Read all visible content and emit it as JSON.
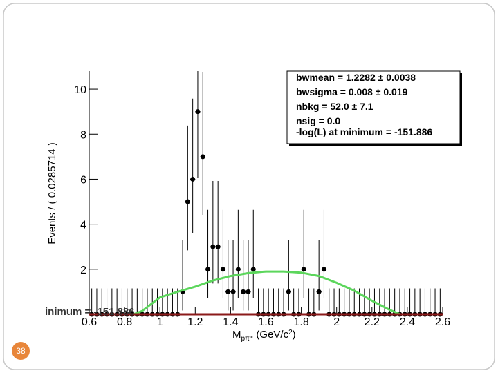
{
  "chart_data": {
    "type": "errorbar",
    "ylabel": "Events / ( 0.0285714 )",
    "xlabel_parts": [
      "M",
      "pπ⁺",
      " (GeV/c",
      "2",
      ")"
    ],
    "xlim": [
      0.6,
      2.6
    ],
    "ylim": [
      0,
      10.8
    ],
    "xticks": [
      0.6,
      0.8,
      1,
      1.2,
      1.4,
      1.6,
      1.8,
      2,
      2.2,
      2.4,
      2.6
    ],
    "yticks": [
      2,
      4,
      6,
      8,
      10
    ],
    "bin_width": 0.0285714,
    "x": [
      0.6143,
      0.6429,
      0.6714,
      0.7,
      0.7286,
      0.7571,
      0.7857,
      0.8143,
      0.8429,
      0.8714,
      0.9,
      0.9286,
      0.9571,
      0.9857,
      1.0143,
      1.0429,
      1.0714,
      1.1,
      1.1286,
      1.1571,
      1.1857,
      1.2143,
      1.2429,
      1.2714,
      1.3,
      1.3286,
      1.3571,
      1.3857,
      1.4143,
      1.4429,
      1.4714,
      1.5,
      1.5286,
      1.5571,
      1.5857,
      1.6143,
      1.6429,
      1.6714,
      1.7,
      1.7286,
      1.7571,
      1.7857,
      1.8143,
      1.8429,
      1.8714,
      1.9,
      1.9286,
      1.9571,
      1.9857,
      2.0143,
      2.0429,
      2.0714,
      2.1,
      2.1286,
      2.1571,
      2.1857,
      2.2143,
      2.2429,
      2.2714,
      2.3,
      2.3286,
      2.3571,
      2.3857,
      2.4143,
      2.4429,
      2.4714,
      2.5,
      2.5286,
      2.5571,
      2.5857
    ],
    "values": [
      0,
      0,
      0,
      0,
      0,
      0,
      0,
      0,
      0,
      0,
      0,
      0,
      0,
      0,
      0,
      0,
      0,
      0,
      1,
      5,
      6,
      9,
      7,
      2,
      3,
      3,
      2,
      1,
      1,
      2,
      1,
      1,
      2,
      0,
      0,
      0,
      0,
      0,
      0,
      1,
      0,
      0,
      2,
      0,
      0,
      1,
      2,
      0,
      0,
      0,
      0,
      0,
      0,
      0,
      0,
      0,
      0,
      0,
      0,
      0,
      0,
      0,
      0,
      0,
      0,
      0,
      0,
      0,
      0,
      0
    ],
    "err_low": [
      0,
      0,
      0,
      0,
      0,
      0,
      0,
      0,
      0,
      0,
      0,
      0,
      0,
      0,
      0,
      0,
      0,
      0,
      0.83,
      2.16,
      2.38,
      2.94,
      2.58,
      1.29,
      1.63,
      1.63,
      1.29,
      0.83,
      0.83,
      1.29,
      0.83,
      0.83,
      1.29,
      0,
      0,
      0,
      0,
      0,
      0,
      0.83,
      0,
      0,
      1.29,
      0,
      0,
      0.83,
      1.29,
      0,
      0,
      0,
      0,
      0,
      0,
      0,
      0,
      0,
      0,
      0,
      0,
      0,
      0,
      0,
      0,
      0,
      0,
      0,
      0,
      0,
      0,
      0
    ],
    "err_high": [
      1.15,
      1.15,
      1.15,
      1.15,
      1.15,
      1.15,
      1.15,
      1.15,
      1.15,
      1.15,
      1.15,
      1.15,
      1.15,
      1.15,
      1.15,
      1.15,
      1.15,
      1.15,
      2.3,
      3.38,
      3.58,
      4.11,
      3.77,
      2.64,
      2.92,
      2.92,
      2.64,
      2.3,
      2.3,
      2.64,
      2.3,
      2.3,
      2.64,
      1.15,
      1.15,
      1.15,
      1.15,
      1.15,
      1.15,
      2.3,
      1.15,
      1.15,
      2.64,
      1.15,
      1.15,
      2.3,
      2.64,
      1.15,
      1.15,
      1.15,
      1.15,
      1.15,
      1.15,
      1.15,
      1.15,
      1.15,
      1.15,
      1.15,
      1.15,
      1.15,
      1.15,
      1.15,
      1.15,
      1.15,
      1.15,
      1.15,
      1.15,
      1.15,
      1.15,
      1.15
    ],
    "color": "#000000",
    "fit_total": {
      "color": "#5cd65c",
      "x": [
        0.6,
        0.85,
        0.9,
        1.0,
        1.1,
        1.2,
        1.3,
        1.4,
        1.5,
        1.6,
        1.7,
        1.8,
        1.9,
        2.0,
        2.1,
        2.2,
        2.3,
        2.36,
        2.4,
        2.6
      ],
      "y": [
        0,
        0,
        0.15,
        0.75,
        1.0,
        1.23,
        1.5,
        1.7,
        1.83,
        1.9,
        1.9,
        1.85,
        1.7,
        1.4,
        1.05,
        0.6,
        0.2,
        0,
        0,
        0
      ]
    },
    "fit_signal": {
      "color": "#8b1a1a",
      "x": [
        0.6,
        2.6
      ],
      "y": [
        0,
        0
      ]
    },
    "stats": [
      "bwmean =  1.2282 ± 0.0038",
      "bwsigma =  0.008 ± 0.019",
      "nbkg =  52.0 ± 7.1",
      "nsig =  0.0",
      "-log(L) at minimum = -151.886"
    ],
    "annotation": "inimum = -151.886"
  },
  "slide_number": "38"
}
